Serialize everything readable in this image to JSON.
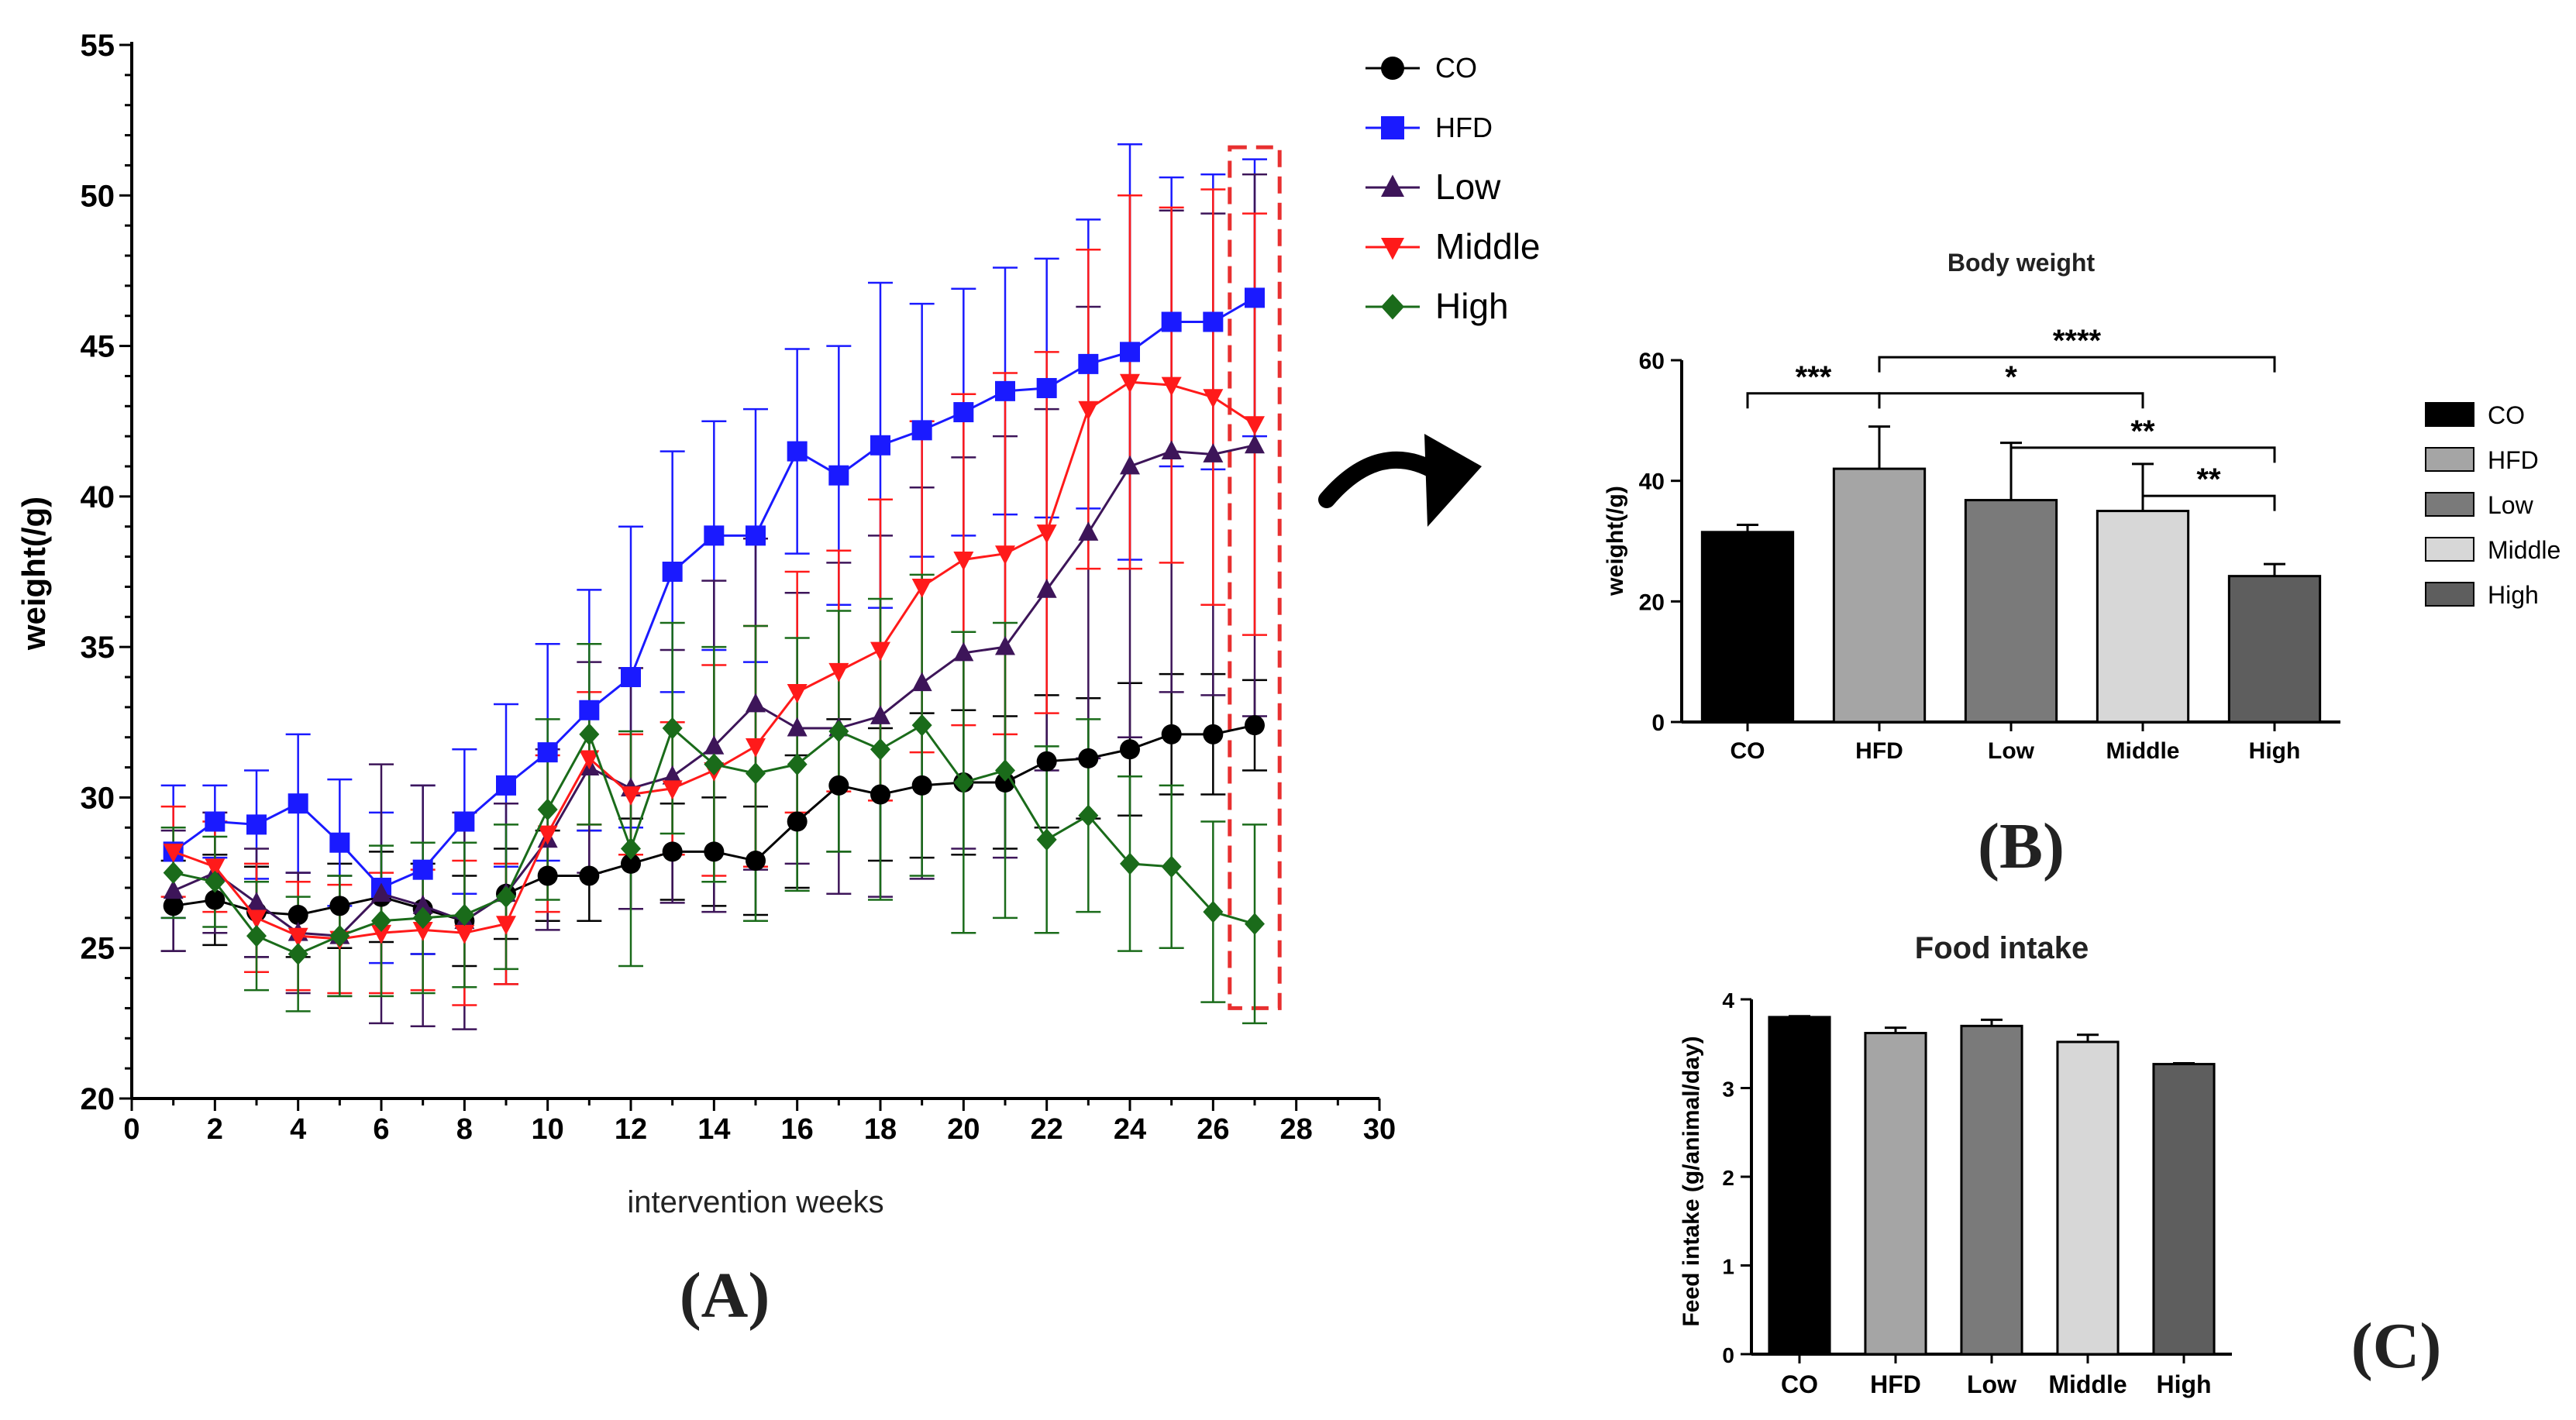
{
  "chart_data": [
    {
      "id": "A",
      "type": "line",
      "panel_label": "(A)",
      "xlabel": "intervention weeks",
      "ylabel": "weight(/g)",
      "xlim": [
        0,
        30
      ],
      "ylim": [
        20,
        55
      ],
      "xticks": [
        0,
        2,
        4,
        6,
        8,
        10,
        12,
        14,
        16,
        18,
        20,
        22,
        24,
        26,
        28,
        30
      ],
      "yticks": [
        20,
        25,
        30,
        35,
        40,
        45,
        50,
        55
      ],
      "x": [
        1,
        2,
        3,
        4,
        5,
        6,
        7,
        8,
        9,
        10,
        11,
        12,
        13,
        14,
        15,
        16,
        17,
        18,
        19,
        20,
        21,
        22,
        23,
        24,
        25,
        26,
        27
      ],
      "series": [
        {
          "name": "CO",
          "color": "#000000",
          "marker": "circle",
          "values": [
            26.4,
            26.6,
            26.2,
            26.1,
            26.4,
            26.7,
            26.3,
            25.9,
            26.8,
            27.4,
            27.4,
            27.8,
            28.2,
            28.2,
            27.9,
            29.2,
            30.4,
            30.1,
            30.4,
            30.5,
            30.5,
            31.2,
            31.3,
            31.6,
            32.1,
            32.1,
            32.4
          ],
          "errors": [
            1.5,
            1.5,
            1.5,
            1.4,
            1.4,
            1.5,
            1.5,
            1.5,
            1.5,
            1.5,
            1.5,
            1.5,
            1.6,
            1.8,
            1.8,
            2.2,
            2.2,
            2.2,
            2.4,
            2.4,
            2.2,
            2.2,
            2.0,
            2.2,
            2.0,
            2.0,
            1.5
          ]
        },
        {
          "name": "HFD",
          "color": "#1a1aff",
          "marker": "square",
          "values": [
            28.2,
            29.2,
            29.1,
            29.8,
            28.5,
            27.0,
            27.6,
            29.2,
            30.4,
            31.5,
            32.9,
            34.0,
            37.5,
            38.7,
            38.7,
            41.5,
            40.7,
            41.7,
            42.2,
            42.8,
            43.5,
            43.6,
            44.4,
            44.8,
            45.8,
            45.8,
            46.6
          ],
          "errors": [
            2.2,
            1.2,
            1.8,
            2.3,
            2.1,
            2.5,
            2.8,
            2.4,
            2.7,
            3.6,
            4.0,
            5.0,
            4.0,
            3.8,
            4.2,
            3.4,
            4.3,
            5.4,
            4.2,
            4.1,
            4.1,
            4.3,
            4.8,
            6.9,
            4.8,
            4.9,
            4.6
          ]
        },
        {
          "name": "Low",
          "color": "#3d1559",
          "marker": "triangle-up",
          "values": [
            26.9,
            27.5,
            26.5,
            25.5,
            25.4,
            26.8,
            26.4,
            25.9,
            26.8,
            28.6,
            31.0,
            30.3,
            30.7,
            31.7,
            33.1,
            32.3,
            32.3,
            32.7,
            33.8,
            34.8,
            35.0,
            36.9,
            38.8,
            41.0,
            41.5,
            41.4,
            41.7
          ],
          "errors": [
            2.0,
            2.0,
            1.8,
            2.0,
            2.0,
            4.3,
            4.0,
            3.6,
            3.0,
            3.0,
            3.5,
            4.0,
            4.2,
            5.5,
            5.5,
            4.5,
            5.5,
            6.0,
            6.5,
            6.5,
            7.0,
            6.0,
            7.5,
            9.0,
            8.0,
            8.0,
            9.0
          ]
        },
        {
          "name": "Middle",
          "color": "#ff1a1a",
          "marker": "triangle-down",
          "values": [
            28.2,
            27.7,
            26.0,
            25.4,
            25.3,
            25.5,
            25.6,
            25.5,
            25.8,
            28.8,
            31.3,
            30.1,
            30.3,
            30.9,
            31.7,
            33.5,
            34.2,
            34.9,
            37.0,
            37.9,
            38.1,
            38.8,
            42.9,
            43.8,
            43.7,
            43.3,
            42.4
          ],
          "errors": [
            1.5,
            1.5,
            1.8,
            1.8,
            1.8,
            2.0,
            2.0,
            2.4,
            2.0,
            2.6,
            2.2,
            2.0,
            2.2,
            3.5,
            4.0,
            4.0,
            4.0,
            5.0,
            5.5,
            5.5,
            6.0,
            6.0,
            5.3,
            6.2,
            5.9,
            6.9,
            7.0
          ]
        },
        {
          "name": "High",
          "color": "#1a6b1a",
          "marker": "diamond",
          "values": [
            27.5,
            27.2,
            25.4,
            24.8,
            25.4,
            25.9,
            26.0,
            26.1,
            26.7,
            29.6,
            32.1,
            28.3,
            32.3,
            31.1,
            30.8,
            31.1,
            32.2,
            31.6,
            32.4,
            30.5,
            30.9,
            28.6,
            29.4,
            27.8,
            27.7,
            26.2,
            25.8
          ],
          "errors": [
            1.5,
            1.5,
            1.8,
            1.9,
            2.0,
            2.5,
            2.5,
            2.4,
            2.4,
            3.0,
            3.0,
            3.9,
            3.5,
            3.9,
            4.9,
            4.2,
            4.0,
            5.0,
            5.0,
            5.0,
            4.9,
            3.1,
            3.2,
            2.9,
            2.7,
            3.0,
            3.3
          ]
        }
      ],
      "highlight": {
        "x_range": [
          26.4,
          27.6
        ],
        "y_range": [
          23.0,
          51.6
        ],
        "color": "#e83030",
        "style": "dashed"
      }
    },
    {
      "id": "B",
      "type": "bar",
      "panel_label": "(B)",
      "title": "Body weight",
      "xlabel": "",
      "ylabel": "weight(/g)",
      "ylim": [
        0,
        60
      ],
      "yticks": [
        0,
        20,
        40,
        60
      ],
      "categories": [
        "CO",
        "HFD",
        "Low",
        "Middle",
        "High"
      ],
      "values": [
        31.5,
        42.0,
        36.8,
        35.0,
        24.2
      ],
      "errors": [
        1.2,
        7.0,
        9.5,
        7.8,
        2.0
      ],
      "colors": [
        "#000000",
        "#a5a5a5",
        "#7a7a7a",
        "#d7d7d7",
        "#5e5e5e"
      ],
      "legend": [
        "CO",
        "HFD",
        "Low",
        "Middle",
        "High"
      ],
      "significance": [
        {
          "from": "CO",
          "to": "HFD",
          "label": "***"
        },
        {
          "from": "HFD",
          "to": "Middle",
          "label": "*"
        },
        {
          "from": "HFD",
          "to": "High",
          "label": "****"
        },
        {
          "from": "Low",
          "to": "High",
          "label": "**"
        },
        {
          "from": "Middle",
          "to": "High",
          "label": "**"
        }
      ]
    },
    {
      "id": "C",
      "type": "bar",
      "panel_label": "(C)",
      "title": "Food intake",
      "xlabel": "",
      "ylabel": "Feed intake (g/animal/day)",
      "ylim": [
        0,
        4
      ],
      "yticks": [
        0,
        1,
        2,
        3,
        4
      ],
      "categories": [
        "CO",
        "HFD",
        "Low",
        "Middle",
        "High"
      ],
      "values": [
        3.8,
        3.62,
        3.7,
        3.52,
        3.27
      ],
      "errors": [
        0.01,
        0.06,
        0.07,
        0.08,
        0.01
      ],
      "colors": [
        "#000000",
        "#a5a5a5",
        "#7a7a7a",
        "#d7d7d7",
        "#5e5e5e"
      ]
    }
  ]
}
